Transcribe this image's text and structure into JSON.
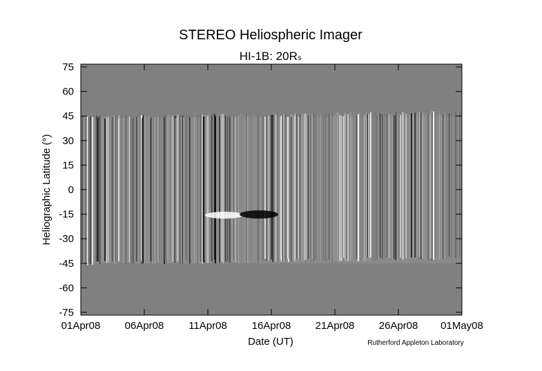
{
  "chart_data": {
    "type": "image",
    "title": "STEREO Heliospheric Imager",
    "subtitle": "HI-1B: 20Rₛ",
    "x_label": "Date (UT)",
    "y_label": "Heliographic Latitude (°)",
    "credit": "Rutherford Appleton Laboratory",
    "xlim": [
      "2008-04-01",
      "2008-05-01"
    ],
    "xticks": [
      {
        "value": "2008-04-01",
        "label": "01Apr08"
      },
      {
        "value": "2008-04-06",
        "label": "06Apr08"
      },
      {
        "value": "2008-04-11",
        "label": "11Apr08"
      },
      {
        "value": "2008-04-16",
        "label": "16Apr08"
      },
      {
        "value": "2008-04-21",
        "label": "21Apr08"
      },
      {
        "value": "2008-04-26",
        "label": "26Apr08"
      },
      {
        "value": "2008-05-01",
        "label": "01May08"
      }
    ],
    "ylim": [
      -76.7,
      76.7
    ],
    "yticks": [
      75,
      60,
      45,
      30,
      15,
      0,
      -15,
      -30,
      -45,
      -60,
      -75
    ],
    "background_color": "#808080"
  }
}
